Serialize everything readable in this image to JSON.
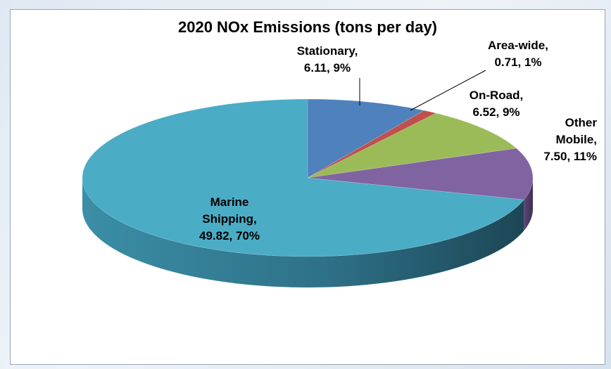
{
  "chart_data": {
    "type": "pie",
    "title": "2020 NOx Emissions (tons per day)",
    "start_angle_deg": -90,
    "slices": [
      {
        "name": "Stationary",
        "value": 6.11,
        "percent": "9%",
        "label_lines": [
          "Stationary,",
          "6.11, 9%"
        ]
      },
      {
        "name": "Area-wide",
        "value": 0.71,
        "percent": "1%",
        "label_lines": [
          "Area-wide,",
          "0.71, 1%"
        ]
      },
      {
        "name": "On-Road",
        "value": 6.52,
        "percent": "9%",
        "label_lines": [
          "On-Road,",
          "6.52, 9%"
        ]
      },
      {
        "name": "Other Mobile",
        "value": 7.5,
        "percent": "11%",
        "label_lines": [
          "Other",
          "Mobile,",
          "7.50, 11%"
        ]
      },
      {
        "name": "Marine Shipping",
        "value": 49.82,
        "percent": "70%",
        "label_lines": [
          "Marine",
          "Shipping,",
          "49.82, 70%"
        ]
      }
    ],
    "colors": {
      "Stationary": "#4f81bd",
      "Area-wide": "#c0504d",
      "On-Road": "#9bbb59",
      "Other Mobile": "#8064a2",
      "Marine Shipping": "#4bacc6"
    },
    "legend": "none",
    "style": "3d-pie"
  }
}
